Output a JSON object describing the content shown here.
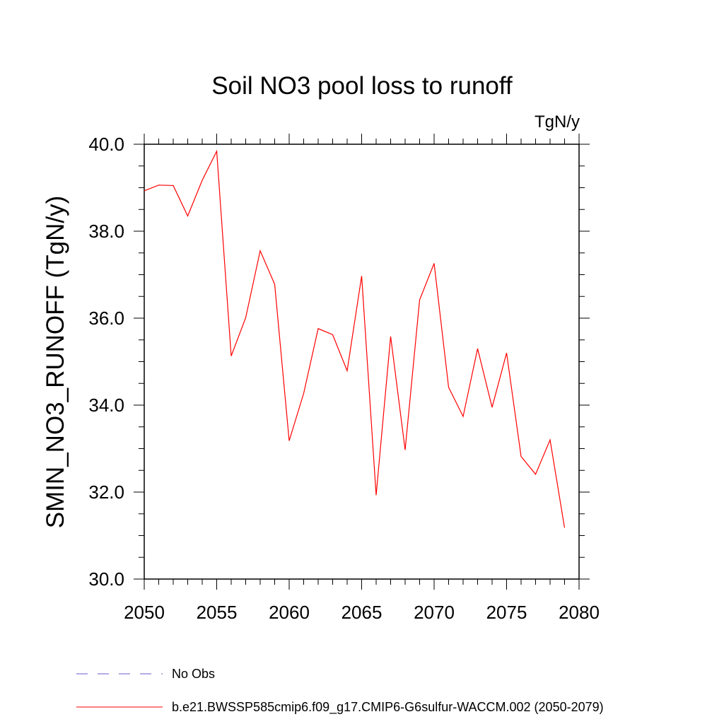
{
  "chart_data": {
    "type": "line",
    "title": "Soil NO3 pool loss to runoff",
    "units": "TgN/y",
    "ylabel": "SMIN_NO3_RUNOFF  (TgN/y)",
    "xlabel": "",
    "xlim": [
      2050,
      2080
    ],
    "ylim": [
      30.0,
      40.0
    ],
    "x_ticks": [
      "2050",
      "2055",
      "2060",
      "2065",
      "2070",
      "2075",
      "2080"
    ],
    "y_ticks": [
      "30.0",
      "32.0",
      "34.0",
      "36.0",
      "38.0",
      "40.0"
    ],
    "grid": false,
    "legend_position": "bottom",
    "series": [
      {
        "name": "b.e21.BWSSP585cmip6.f09_g17.CMIP6-G6sulfur-WACCM.002 (2050-2079)",
        "color": "#ff0000",
        "style": "solid",
        "x": [
          2050,
          2051,
          2052,
          2053,
          2054,
          2055,
          2056,
          2057,
          2058,
          2059,
          2060,
          2061,
          2062,
          2063,
          2064,
          2065,
          2066,
          2067,
          2068,
          2069,
          2070,
          2071,
          2072,
          2073,
          2074,
          2075,
          2076,
          2077,
          2078,
          2079
        ],
        "values": [
          38.93,
          39.06,
          39.05,
          38.35,
          39.17,
          39.84,
          35.13,
          36.01,
          37.55,
          36.78,
          33.18,
          34.27,
          35.76,
          35.62,
          34.79,
          36.97,
          31.93,
          35.58,
          32.97,
          36.42,
          37.26,
          34.41,
          33.74,
          35.3,
          33.95,
          35.2,
          32.82,
          32.41,
          33.2,
          31.18
        ]
      },
      {
        "name": "No Obs",
        "color": "#6a5acd",
        "style": "dashed",
        "x": [],
        "values": []
      }
    ]
  }
}
